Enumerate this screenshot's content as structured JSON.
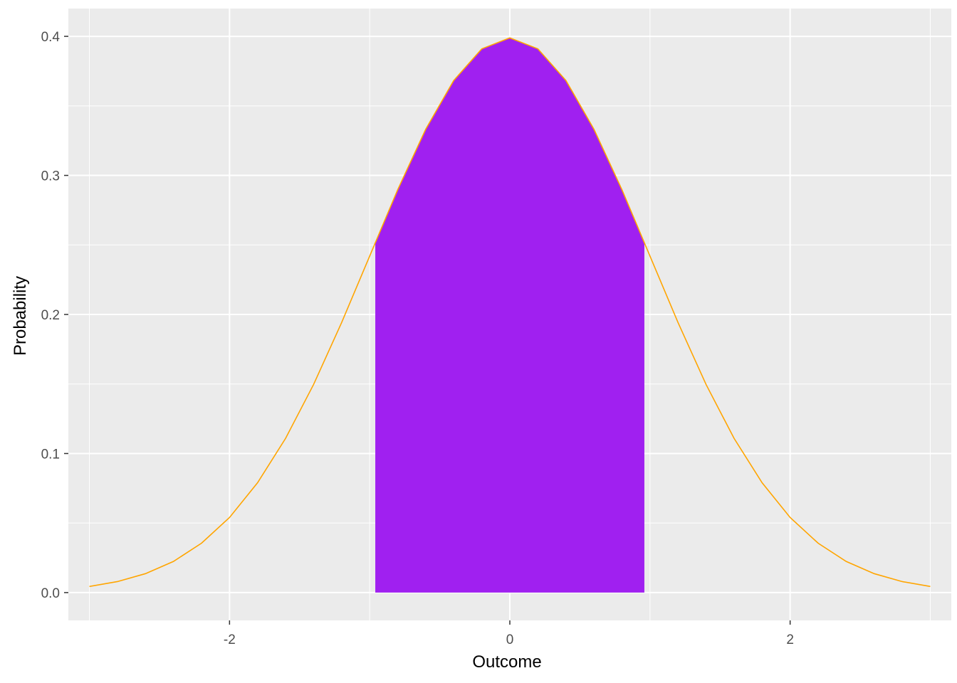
{
  "chart_data": {
    "type": "area",
    "title": "",
    "xlabel": "Outcome",
    "ylabel": "Probability",
    "xlim": [
      -3.15,
      3.15
    ],
    "ylim": [
      -0.02,
      0.42
    ],
    "x_ticks": [
      -2,
      0,
      2
    ],
    "x_tick_labels": [
      "-2",
      "0",
      "2"
    ],
    "y_ticks": [
      0.0,
      0.1,
      0.2,
      0.3,
      0.4
    ],
    "y_tick_labels": [
      "0.0",
      "0.1",
      "0.2",
      "0.3",
      "0.4"
    ],
    "grid": true,
    "legend": "none",
    "series": [
      {
        "kind": "line",
        "color": "#FFA500",
        "x": [
          -3.0,
          -2.8,
          -2.6,
          -2.4,
          -2.2,
          -2.0,
          -1.8,
          -1.6,
          -1.4,
          -1.2,
          -1.0,
          -0.8,
          -0.6,
          -0.4,
          -0.2,
          0.0,
          0.2,
          0.4,
          0.6,
          0.8,
          1.0,
          1.2,
          1.4,
          1.6,
          1.8,
          2.0,
          2.2,
          2.4,
          2.6,
          2.8,
          3.0
        ],
        "y": [
          0.0044,
          0.0079,
          0.0136,
          0.0224,
          0.0355,
          0.054,
          0.079,
          0.1109,
          0.1497,
          0.1942,
          0.242,
          0.2897,
          0.3332,
          0.3683,
          0.391,
          0.3989,
          0.391,
          0.3683,
          0.3332,
          0.2897,
          0.242,
          0.1942,
          0.1497,
          0.1109,
          0.079,
          0.054,
          0.0355,
          0.0224,
          0.0136,
          0.0079,
          0.0044
        ]
      },
      {
        "kind": "area",
        "color": "#A020F0",
        "x": [
          -0.96,
          -0.8,
          -0.6,
          -0.4,
          -0.2,
          0.0,
          0.2,
          0.4,
          0.6,
          0.8,
          0.96
        ],
        "y": [
          0.2516,
          0.2897,
          0.3332,
          0.3683,
          0.391,
          0.3989,
          0.391,
          0.3683,
          0.3332,
          0.2897,
          0.2516
        ]
      }
    ]
  }
}
